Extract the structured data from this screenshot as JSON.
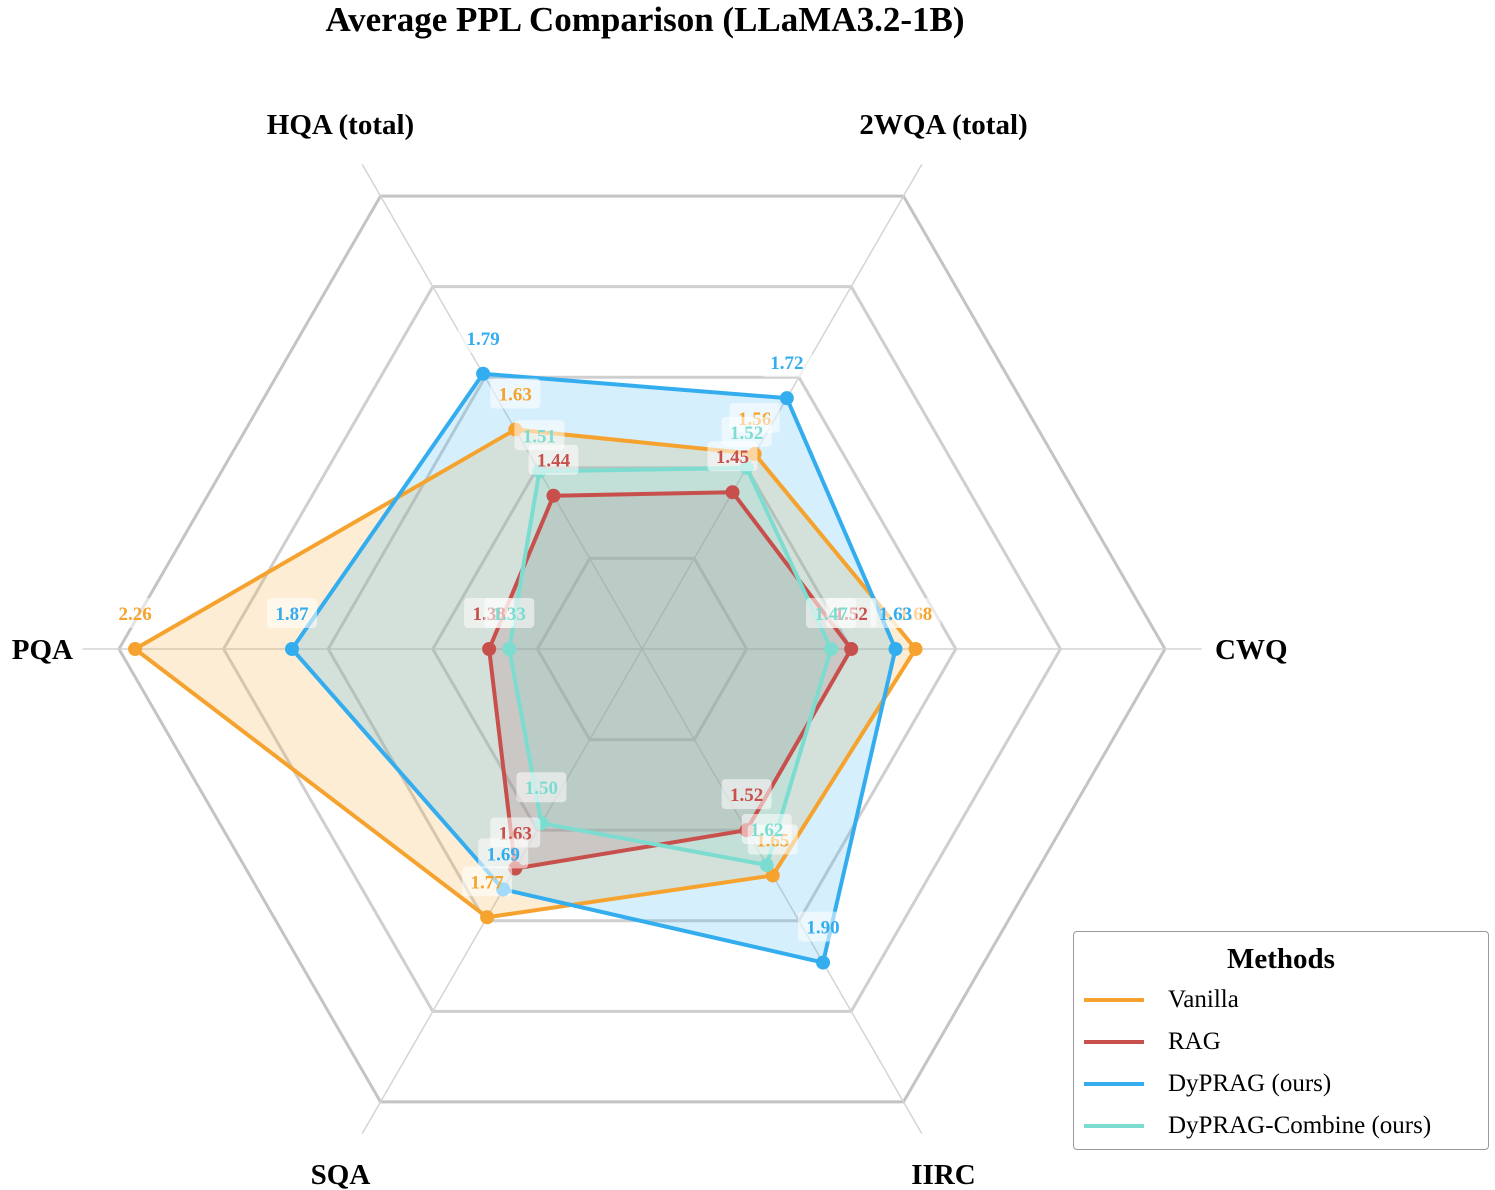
{
  "chart_data": {
    "type": "radar",
    "title": "Average PPL Comparison (LLaMA3.2-1B)",
    "axes": [
      "CWQ",
      "2WQA (total)",
      "HQA (total)",
      "PQA",
      "SQA",
      "IIRC"
    ],
    "series": [
      {
        "name": "Vanilla",
        "values": [
          1.68,
          1.56,
          1.63,
          2.26,
          1.77,
          1.65
        ],
        "color": "#f5a32e"
      },
      {
        "name": "RAG",
        "values": [
          1.52,
          1.45,
          1.44,
          1.38,
          1.63,
          1.52
        ],
        "color": "#c8504c"
      },
      {
        "name": "DyPRAG (ours)",
        "values": [
          1.63,
          1.72,
          1.79,
          1.87,
          1.69,
          1.9
        ],
        "color": "#34adef"
      },
      {
        "name": "DyPRAG-Combine (ours)",
        "values": [
          1.47,
          1.52,
          1.51,
          1.33,
          1.5,
          1.62
        ],
        "color": "#7ddcd0"
      }
    ],
    "legend_title": "Methods",
    "legend_position": "bottom-right",
    "grid": true
  }
}
